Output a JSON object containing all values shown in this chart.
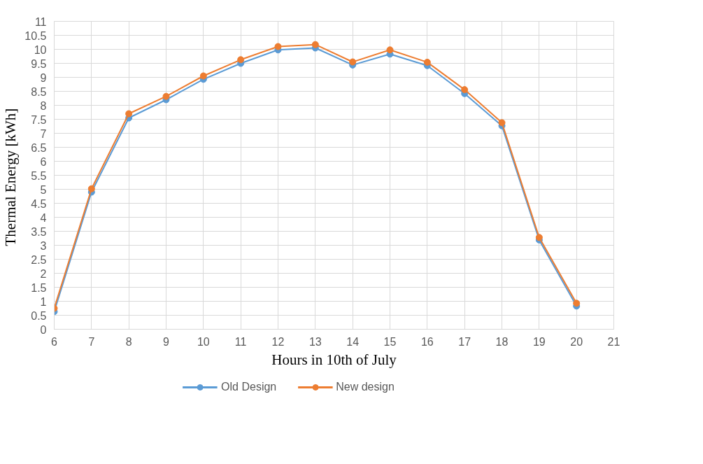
{
  "chart_data": {
    "type": "line",
    "xlabel": "Hours in 10th of July",
    "ylabel": "Thermal Energy  [kWh]",
    "x": [
      6,
      7,
      8,
      9,
      10,
      11,
      12,
      13,
      14,
      15,
      16,
      17,
      18,
      19,
      20
    ],
    "series": [
      {
        "name": "Old Design",
        "color": "#5b9bd5",
        "values": [
          0.63,
          4.9,
          7.55,
          8.2,
          8.93,
          9.5,
          9.98,
          10.05,
          9.44,
          9.83,
          9.42,
          8.42,
          7.27,
          3.19,
          0.83
        ]
      },
      {
        "name": "New design",
        "color": "#ed7d31",
        "values": [
          0.75,
          5.02,
          7.7,
          8.32,
          9.05,
          9.63,
          10.1,
          10.17,
          9.55,
          9.98,
          9.54,
          8.56,
          7.38,
          3.28,
          0.93
        ]
      }
    ],
    "xlim": [
      6,
      21
    ],
    "xticks": [
      6,
      7,
      8,
      9,
      10,
      11,
      12,
      13,
      14,
      15,
      16,
      17,
      18,
      19,
      20,
      21
    ],
    "ylim": [
      0,
      11
    ],
    "yticks": [
      0,
      0.5,
      1,
      1.5,
      2,
      2.5,
      3,
      3.5,
      4,
      4.5,
      5,
      5.5,
      6,
      6.5,
      7,
      7.5,
      8,
      8.5,
      9,
      9.5,
      10,
      10.5,
      11
    ],
    "grid": true,
    "legend": "bottom",
    "marker": "circle",
    "line_style": "solid"
  }
}
